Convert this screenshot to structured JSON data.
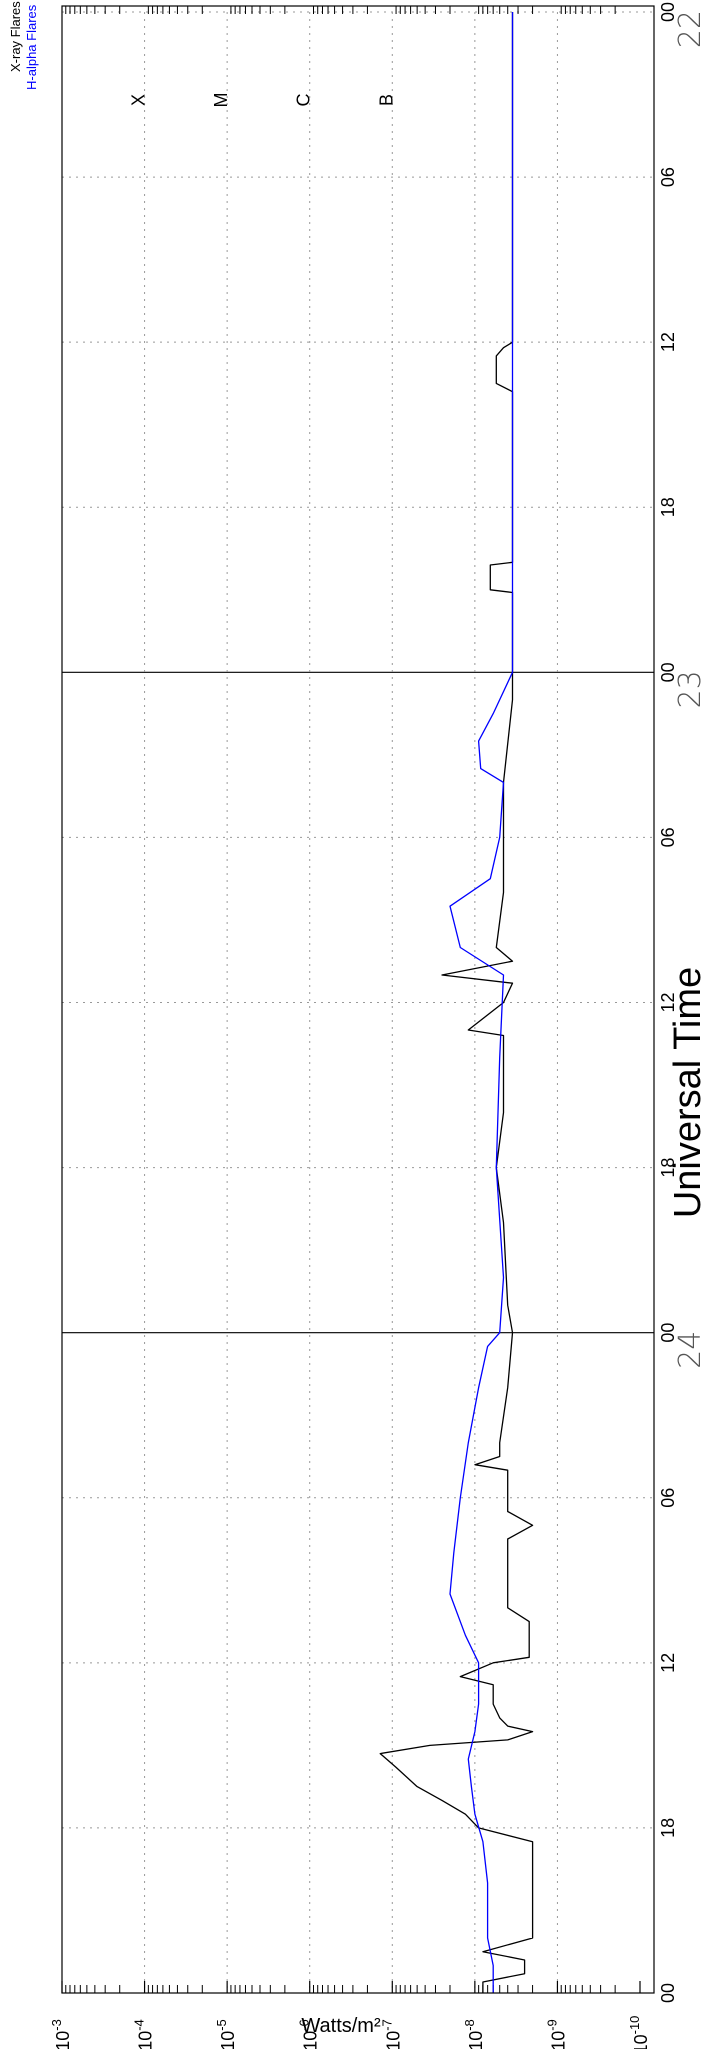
{
  "chart_data": {
    "type": "line",
    "xlabel": "Universal Time",
    "ylabel": "Watts/m²",
    "y_scale": "log",
    "ylim": [
      1e-10,
      0.001
    ],
    "y_ticks": [
      {
        "base": "10",
        "exp": "-3"
      },
      {
        "base": "10",
        "exp": "-4"
      },
      {
        "base": "10",
        "exp": "-5"
      },
      {
        "base": "10",
        "exp": "-6"
      },
      {
        "base": "10",
        "exp": "-7"
      },
      {
        "base": "10",
        "exp": "-8"
      },
      {
        "base": "10",
        "exp": "-9"
      },
      {
        "base": "10",
        "exp": "-10"
      }
    ],
    "flare_classes": [
      {
        "label": "X",
        "exp": -4
      },
      {
        "label": "M",
        "exp": -5
      },
      {
        "label": "C",
        "exp": -6
      },
      {
        "label": "B",
        "exp": -7
      }
    ],
    "x_range_hours": [
      0,
      72
    ],
    "x_tick_labels": [
      "00",
      "06",
      "12",
      "18",
      "00",
      "06",
      "12",
      "18",
      "00",
      "06",
      "12",
      "18",
      "00"
    ],
    "day_labels": [
      "22",
      "23",
      "24"
    ],
    "grid": "dotted",
    "legend": [
      {
        "label": "X-ray Flares",
        "color": "#000000"
      },
      {
        "label": "H-alpha Flares",
        "color": "#0000ff"
      }
    ],
    "series": [
      {
        "name": "X-ray Flares",
        "color": "#000000",
        "points": [
          [
            0,
            3.5e-09
          ],
          [
            12.0,
            3.5e-09
          ],
          [
            12.2,
            4.5e-09
          ],
          [
            12.5,
            5.5e-09
          ],
          [
            13.5,
            5.5e-09
          ],
          [
            13.8,
            3.5e-09
          ],
          [
            20.0,
            3.5e-09
          ],
          [
            20.1,
            6.5e-09
          ],
          [
            21.0,
            6.5e-09
          ],
          [
            21.1,
            3.5e-09
          ],
          [
            25.0,
            3.5e-09
          ],
          [
            28.0,
            4.5e-09
          ],
          [
            32.0,
            4.5e-09
          ],
          [
            34.0,
            5.5e-09
          ],
          [
            34.5,
            3.5e-09
          ],
          [
            35.0,
            2.5e-08
          ],
          [
            35.3,
            3.5e-09
          ],
          [
            36.0,
            4.5e-09
          ],
          [
            37.0,
            1.2e-08
          ],
          [
            37.2,
            4.5e-09
          ],
          [
            38.0,
            4.5e-09
          ],
          [
            40.0,
            4.5e-09
          ],
          [
            42.0,
            5.5e-09
          ],
          [
            44.0,
            4.5e-09
          ],
          [
            47.0,
            4e-09
          ],
          [
            48.0,
            3.5e-09
          ],
          [
            50.0,
            4e-09
          ],
          [
            52.0,
            5e-09
          ],
          [
            52.5,
            5e-09
          ],
          [
            52.8,
            1e-08
          ],
          [
            53.0,
            4e-09
          ],
          [
            54.0,
            4e-09
          ],
          [
            54.5,
            4e-09
          ],
          [
            55.0,
            2e-09
          ],
          [
            55.5,
            4e-09
          ],
          [
            56.0,
            4e-09
          ],
          [
            58.0,
            4e-09
          ],
          [
            58.5,
            2.2e-09
          ],
          [
            59.8,
            2.2e-09
          ],
          [
            60.0,
            6e-09
          ],
          [
            60.5,
            1.5e-08
          ],
          [
            60.8,
            6e-09
          ],
          [
            61.5,
            6e-09
          ],
          [
            62.0,
            5e-09
          ],
          [
            62.3,
            4e-09
          ],
          [
            62.5,
            2e-09
          ],
          [
            62.8,
            4e-09
          ],
          [
            63.0,
            3.5e-08
          ],
          [
            63.3,
            1.4e-07
          ],
          [
            63.8,
            9e-08
          ],
          [
            64.5,
            5e-08
          ],
          [
            65.0,
            2.5e-08
          ],
          [
            65.5,
            1.3e-08
          ],
          [
            66.0,
            9e-09
          ],
          [
            66.5,
            2e-09
          ],
          [
            68.0,
            2e-09
          ],
          [
            70.0,
            2e-09
          ],
          [
            70.5,
            8e-09
          ],
          [
            70.8,
            2.5e-09
          ],
          [
            71.3,
            2.5e-09
          ],
          [
            71.6,
            8e-09
          ],
          [
            72.0,
            8e-09
          ]
        ]
      },
      {
        "name": "H-alpha Flares",
        "color": "#0000ff",
        "points": [
          [
            0,
            3.5e-09
          ],
          [
            24.0,
            3.5e-09
          ],
          [
            25.5,
            6e-09
          ],
          [
            26.5,
            9e-09
          ],
          [
            27.5,
            8.5e-09
          ],
          [
            28.0,
            4.5e-09
          ],
          [
            30.0,
            5e-09
          ],
          [
            31.5,
            6.5e-09
          ],
          [
            32.5,
            2e-08
          ],
          [
            34.0,
            1.5e-08
          ],
          [
            35.0,
            4.5e-09
          ],
          [
            38.0,
            5e-09
          ],
          [
            42.0,
            5.5e-09
          ],
          [
            46.0,
            4.5e-09
          ],
          [
            48.0,
            5e-09
          ],
          [
            48.5,
            7e-09
          ],
          [
            50.0,
            9e-09
          ],
          [
            52.0,
            1.2e-08
          ],
          [
            54.0,
            1.5e-08
          ],
          [
            56.0,
            1.8e-08
          ],
          [
            57.5,
            2e-08
          ],
          [
            59.0,
            1.3e-08
          ],
          [
            60.0,
            9e-09
          ],
          [
            61.5,
            9e-09
          ],
          [
            62.5,
            1e-08
          ],
          [
            63.5,
            1.2e-08
          ],
          [
            64.5,
            1.1e-08
          ],
          [
            65.5,
            1e-08
          ],
          [
            66.5,
            8e-09
          ],
          [
            68.0,
            7e-09
          ],
          [
            70.0,
            7e-09
          ],
          [
            71.0,
            6e-09
          ],
          [
            72.0,
            6e-09
          ]
        ]
      }
    ]
  }
}
